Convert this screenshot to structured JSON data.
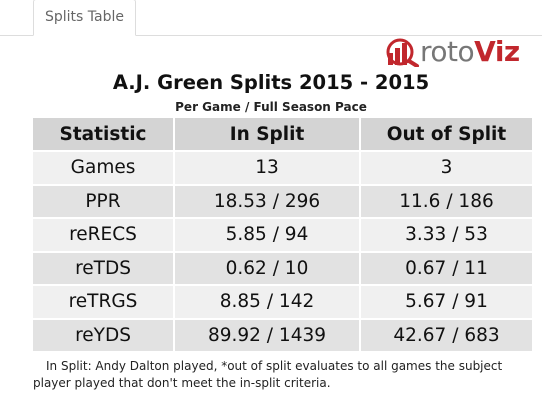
{
  "tabs": [
    {
      "label": "Splits Table"
    }
  ],
  "logo": {
    "prefix": "roto",
    "suffix": "Viz",
    "brand_color": "#c1272d"
  },
  "title": "A.J. Green Splits 2015 - 2015",
  "subtitle": "Per Game / Full Season Pace",
  "table": {
    "headers": [
      "Statistic",
      "In Split",
      "Out of Split"
    ],
    "rows": [
      [
        "Games",
        "13",
        "3"
      ],
      [
        "PPR",
        "18.53 / 296",
        "11.6 / 186"
      ],
      [
        "reRECS",
        "5.85 / 94",
        "3.33 / 53"
      ],
      [
        "reTDS",
        "0.62 / 10",
        "0.67 / 11"
      ],
      [
        "reTRGS",
        "8.85 / 142",
        "5.67 / 91"
      ],
      [
        "reYDS",
        "89.92 / 1439",
        "42.67 / 683"
      ]
    ]
  },
  "footnote": {
    "line1": "In Split: Andy Dalton played,  *out of split evaluates to all games the subject",
    "line2": "player played that don't meet the in-split criteria."
  }
}
